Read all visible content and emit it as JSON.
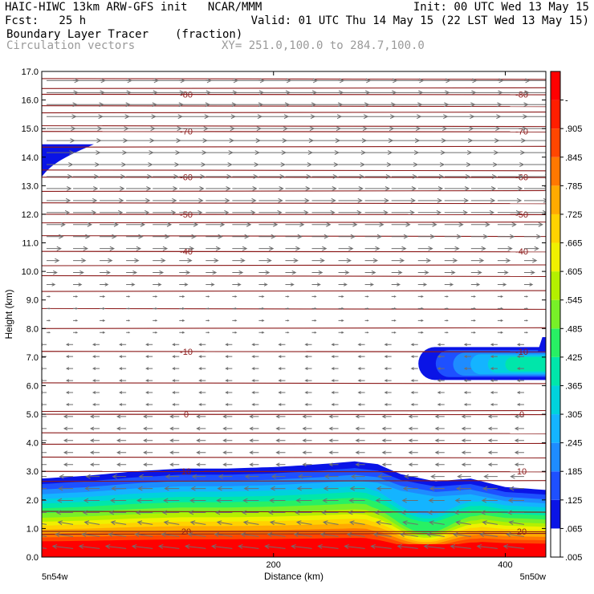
{
  "header": {
    "line1_left": "HAIC-HIWC 13km ARW-GFS init   NCAR/MMM",
    "line1_right": "Init: 00 UTC Wed 13 May 15",
    "line2_left": "Fcst:   25 h",
    "line2_right": "Valid: 01 UTC Thu 14 May 15 (22 LST Wed 13 May 15)",
    "line3_field": "Boundary Layer Tracer",
    "line3_units": "(fraction)",
    "line4_field": "Circulation vectors",
    "line4_xy": "XY= 251.0,100.0 to 284.7,100.0"
  },
  "chart_data": {
    "type": "heatmap",
    "title": "Boundary Layer Tracer",
    "units": "(fraction)",
    "xlabel": "Distance (km)",
    "ylabel": "Height (km)",
    "xlim": [
      0,
      435
    ],
    "ylim": [
      0,
      17
    ],
    "x_ticks": [
      0,
      200,
      400
    ],
    "x_tick_labels": [
      "",
      "200",
      "400"
    ],
    "x_end_labels": [
      "5n54w",
      "5n50w"
    ],
    "y_ticks": [
      0,
      1,
      2,
      3,
      4,
      5,
      6,
      7,
      8,
      9,
      10,
      11,
      12,
      13,
      14,
      15,
      16,
      17
    ],
    "y_tick_labels": [
      "0.0",
      "1.0",
      "2.0",
      "3.0",
      "4.0",
      "5.0",
      "6.0",
      "7.0",
      "8.0",
      "9.0",
      "10.0",
      "11.0",
      "12.0",
      "13.0",
      "14.0",
      "15.0",
      "16.0",
      "17.0"
    ],
    "colorbar": {
      "labels": [
        ".005",
        ".065",
        ".125",
        ".185",
        ".245",
        ".305",
        ".365",
        ".425",
        ".485",
        ".545",
        ".605",
        ".665",
        ".725",
        ".785",
        ".845",
        ".905",
        "-"
      ],
      "colors": [
        "#ffffff",
        "#0a14e6",
        "#1e50ff",
        "#1e8cff",
        "#14b4ff",
        "#00d2dc",
        "#00e6aa",
        "#28f064",
        "#78f028",
        "#b4f000",
        "#f0f000",
        "#ffd200",
        "#ffaa00",
        "#ff7800",
        "#ff4600",
        "#ff1e00",
        "#ff0000"
      ]
    },
    "contours": [
      {
        "label": "-80",
        "height_km": 16.2
      },
      {
        "label": "-70",
        "height_km": 14.9
      },
      {
        "label": "-60",
        "height_km": 13.3
      },
      {
        "label": "-50",
        "height_km": 12.0
      },
      {
        "label": "-40",
        "height_km": 10.7
      },
      {
        "label": "-10",
        "height_km": 7.2
      },
      {
        "label": "0",
        "height_km": 5.0
      },
      {
        "label": "10",
        "height_km": 3.0
      },
      {
        "label": "20",
        "height_km": 0.9
      }
    ],
    "tracer_regions": [
      {
        "name": "boundary layer",
        "x_km": [
          0,
          435
        ],
        "top_km": [
          2.7,
          3.0,
          3.1,
          3.2,
          3.3,
          3.1,
          2.4
        ],
        "max_fraction": 1.0
      },
      {
        "name": "mid-level",
        "x_km": [
          325,
          435
        ],
        "height_km": [
          6.2,
          7.6
        ],
        "max_fraction": 0.4
      },
      {
        "name": "upper-level",
        "x_km": [
          0,
          45
        ],
        "height_km": [
          13.4,
          14.5
        ],
        "max_fraction": 0.07
      }
    ],
    "wind_vectors": {
      "upper_levels_km": [
        9.5,
        17
      ],
      "upper_direction": "left-to-right",
      "lower_direction": "right-to-left"
    }
  }
}
